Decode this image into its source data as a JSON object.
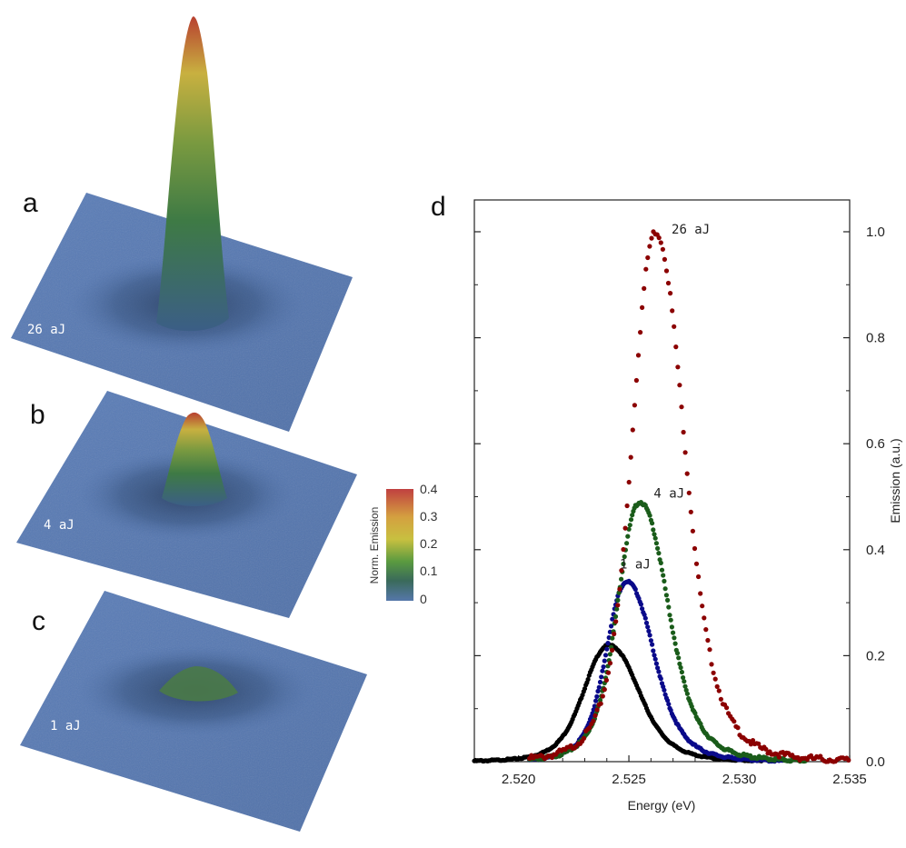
{
  "panels": {
    "a": {
      "letter": "a",
      "label": "26 aJ",
      "peak": 1.0
    },
    "b": {
      "letter": "b",
      "label": "4 aJ",
      "peak": 0.5
    },
    "c": {
      "letter": "c",
      "label": "1 aJ",
      "peak": 0.22
    }
  },
  "colorbar": {
    "title": "Norm. Emission",
    "ticks": [
      "0.4",
      "0.3",
      "0.2",
      "0.1",
      "0"
    ],
    "colors": [
      "#c04040",
      "#d4a040",
      "#c8c040",
      "#5a9a40",
      "#3a6a5a",
      "#5577aa"
    ]
  },
  "chart_data": {
    "type": "scatter",
    "panel_letter": "d",
    "xlabel": "Energy (eV)",
    "ylabel": "Emission (a.u.)",
    "xlim": [
      2.518,
      2.535
    ],
    "ylim": [
      0.0,
      1.06
    ],
    "xticks": [
      "2.520",
      "2.525",
      "2.530",
      "2.535"
    ],
    "yticks": [
      "0.0",
      "0.2",
      "0.4",
      "0.6",
      "0.8",
      "1.0"
    ],
    "y_axis_side": "right",
    "series": [
      {
        "name": "26 aJ",
        "color": "#8b0000",
        "center": 2.5262,
        "peak": 1.0,
        "width_left": 0.00125,
        "width_right": 0.00155,
        "x_start": 2.5205,
        "x_end": 2.535
      },
      {
        "name": "4 aJ",
        "color": "#1a5c1a",
        "center": 2.5255,
        "peak": 0.49,
        "width_left": 0.0012,
        "width_right": 0.0015,
        "x_start": 2.5205,
        "x_end": 2.533
      },
      {
        "name": "1 aJ",
        "color": "#0a0a8a",
        "center": 2.5249,
        "peak": 0.34,
        "width_left": 0.0011,
        "width_right": 0.00145,
        "x_start": 2.5205,
        "x_end": 2.532
      },
      {
        "name": "",
        "color": "#000000",
        "center": 2.5241,
        "peak": 0.22,
        "width_left": 0.00135,
        "width_right": 0.0016,
        "x_start": 2.518,
        "x_end": 2.531
      }
    ],
    "annotations": [
      {
        "text": "26 aJ",
        "series": 0
      },
      {
        "text": "4 aJ",
        "series": 1
      },
      {
        "text": "1 aJ",
        "series": 2
      }
    ],
    "grid": false,
    "legend": "none"
  }
}
